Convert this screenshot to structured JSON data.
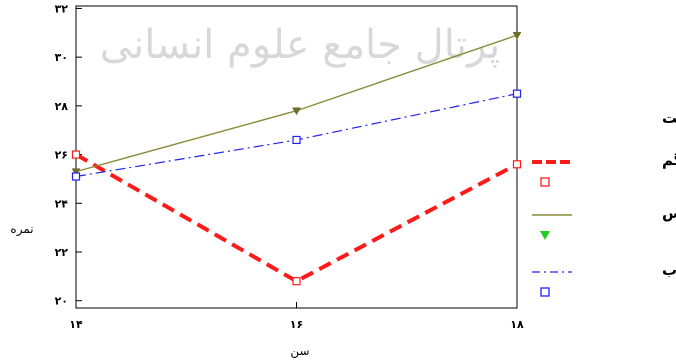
{
  "watermark": "پرتال جامع علوم انسانی",
  "chart_data": {
    "type": "line",
    "title": "",
    "xlabel": "سن",
    "ylabel": "نمره",
    "categories": [
      "14",
      "16",
      "18"
    ],
    "x_tick_labels": [
      "۱۴",
      "۱۶",
      "۱۸"
    ],
    "yticks": [
      20,
      22,
      24,
      26,
      28,
      30,
      32
    ],
    "y_tick_labels": [
      "۲۰",
      "۲۲",
      "۲۴",
      "۲۶",
      "۲۸",
      "۳۰",
      "۳۲"
    ],
    "ylim": [
      19.7,
      32.1
    ],
    "grid": false,
    "legend": {
      "title": "پایگاه هویت",
      "position": "right"
    },
    "series": [
      {
        "name": "سردرگم",
        "values": [
          26.0,
          20.8,
          25.6
        ],
        "color": "#ff1a1a",
        "marker": "square"
      },
      {
        "name": "پیش رس",
        "values": [
          25.3,
          27.8,
          30.9
        ],
        "color": "#8b8b3a",
        "marker": "triangle",
        "marker_color": "#22cc22"
      },
      {
        "name": "مطلوب",
        "values": [
          25.1,
          26.6,
          28.5
        ],
        "color": "#2222ee",
        "marker": "square"
      }
    ]
  }
}
